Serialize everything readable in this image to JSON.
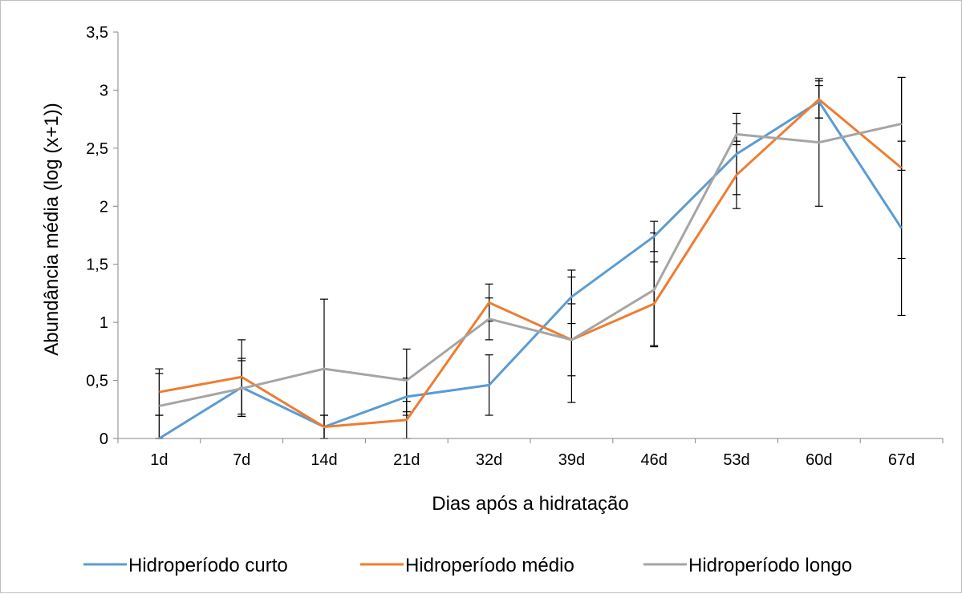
{
  "chart_data": {
    "type": "line",
    "title": "",
    "xlabel": "Dias após a hidratação",
    "ylabel": "Abundância média (log (x+1))",
    "categories": [
      "1d",
      "7d",
      "14d",
      "21d",
      "32d",
      "39d",
      "46d",
      "53d",
      "60d",
      "67d"
    ],
    "ylim": [
      0,
      3.5
    ],
    "yticks": [
      0,
      0.5,
      1,
      1.5,
      2,
      2.5,
      3,
      3.5
    ],
    "ytick_labels": [
      "0",
      "0,5",
      "1",
      "1,5",
      "2",
      "2,5",
      "3",
      "3,5"
    ],
    "grid": false,
    "legend_position": "bottom",
    "series": [
      {
        "name": "Hidroperíodo curto",
        "color": "#5b9bd5",
        "values": [
          0.0,
          0.44,
          0.1,
          0.36,
          0.46,
          1.22,
          1.74,
          2.45,
          2.9,
          1.81
        ],
        "error": [
          0.2,
          0.25,
          0.1,
          0.16,
          0.26,
          0.23,
          0.13,
          0.35,
          0.14,
          0.75
        ]
      },
      {
        "name": "Hidroperíodo médio",
        "color": "#ed7d31",
        "values": [
          0.4,
          0.53,
          0.1,
          0.16,
          1.17,
          0.85,
          1.16,
          2.27,
          2.92,
          2.33
        ],
        "error": [
          0.2,
          0.32,
          0.1,
          0.16,
          0.16,
          0.31,
          0.36,
          0.29,
          0.16,
          0.78
        ]
      },
      {
        "name": "Hidroperíodo longo",
        "color": "#a5a5a5",
        "values": [
          0.28,
          0.43,
          0.6,
          0.5,
          1.03,
          0.85,
          1.28,
          2.62,
          2.55,
          2.71
        ],
        "error": [
          0.28,
          0.24,
          0.6,
          0.27,
          0.18,
          0.54,
          0.49,
          0.09,
          0.55,
          0.4
        ]
      }
    ]
  }
}
